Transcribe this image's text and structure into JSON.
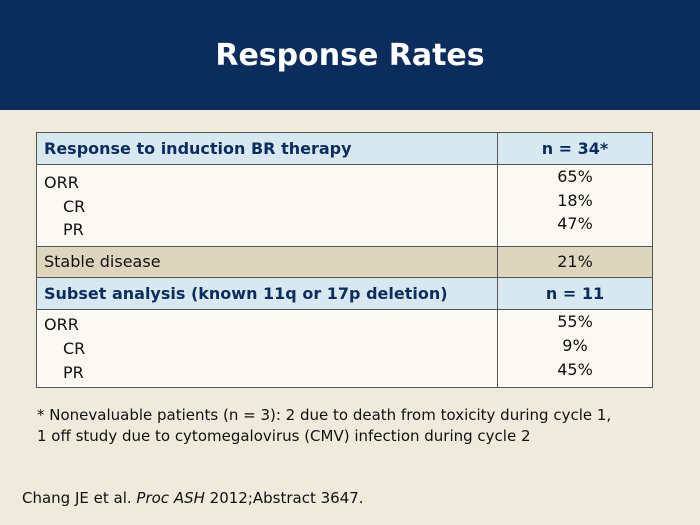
{
  "title": "Response Rates",
  "table": {
    "section1": {
      "header_label": "Response to induction BR therapy",
      "header_value": "n = 34*",
      "rows": [
        {
          "label": "ORR",
          "value": "65%"
        },
        {
          "label": "CR",
          "value": "18%"
        },
        {
          "label": "PR",
          "value": "47%"
        }
      ],
      "stable_label": "Stable disease",
      "stable_value": "21%"
    },
    "section2": {
      "header_label": "Subset analysis (known 11q or 17p deletion)",
      "header_value": "n = 11",
      "rows": [
        {
          "label": "ORR",
          "value": "55%"
        },
        {
          "label": "CR",
          "value": "9%"
        },
        {
          "label": "PR",
          "value": "45%"
        }
      ]
    }
  },
  "footnote": {
    "line1": "* Nonevaluable patients (n = 3): 2 due to death from toxicity during cycle 1,",
    "line2": "1 off study due to cytomegalovirus (CMV) infection during cycle 2"
  },
  "citation": {
    "authors": "Chang JE et al. ",
    "journal": "Proc ASH",
    "rest": " 2012;Abstract 3647."
  }
}
